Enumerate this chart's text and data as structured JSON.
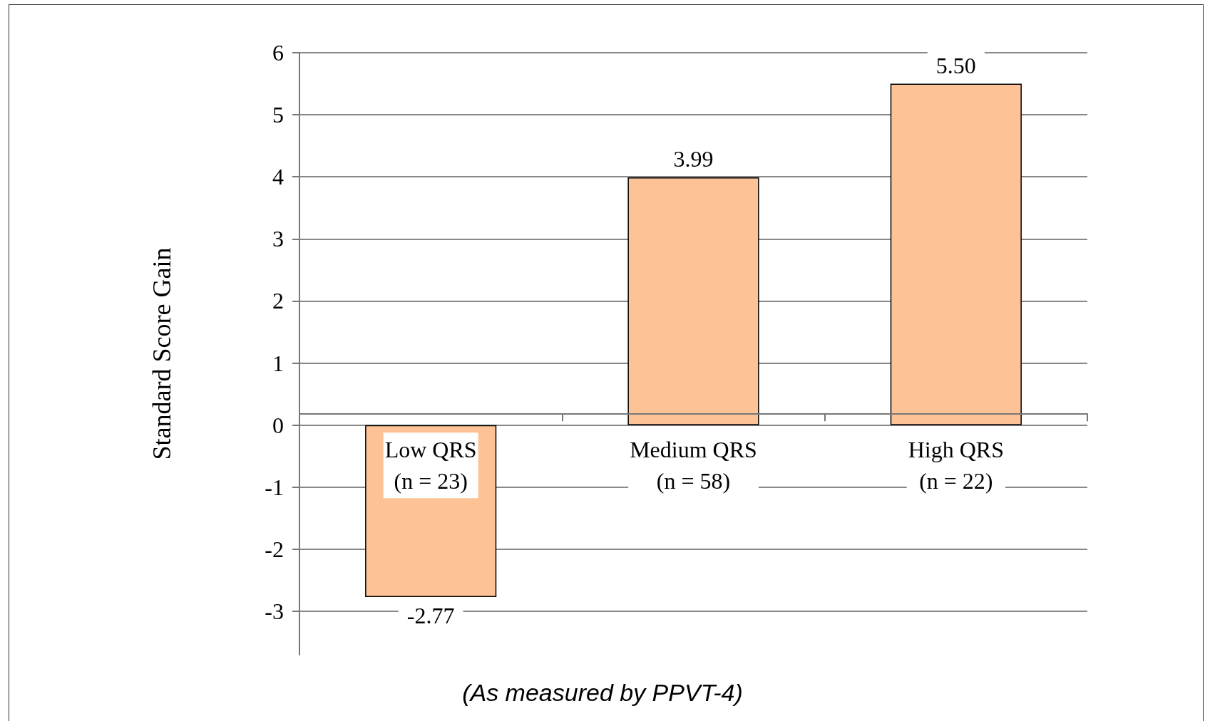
{
  "chart_data": {
    "type": "bar",
    "categories": [
      "Low QRS\n(n = 23)",
      "Medium QRS\n(n = 58)",
      "High QRS\n(n = 22)"
    ],
    "values": [
      -2.77,
      3.99,
      5.5
    ],
    "value_labels": [
      "-2.77",
      "3.99",
      "5.50"
    ],
    "color": "#fdc396",
    "ylabel": "Standard Score Gain",
    "xlabel": "(As measured by PPVT-4)",
    "ylim": [
      -3.7,
      6
    ],
    "yticks": [
      -3,
      -2,
      -1,
      0,
      1,
      2,
      3,
      4,
      5,
      6
    ],
    "grid": "y"
  }
}
